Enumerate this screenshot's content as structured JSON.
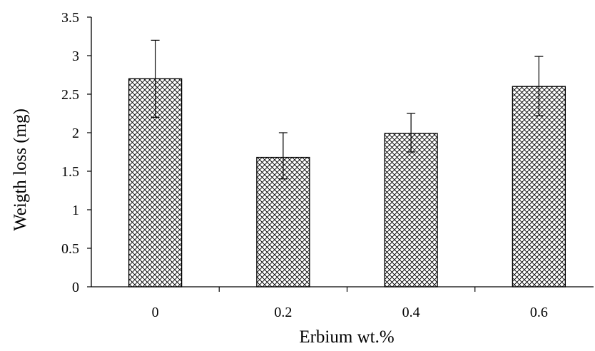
{
  "chart_data": {
    "type": "bar",
    "categories": [
      "0",
      "0.2",
      "0.4",
      "0.6"
    ],
    "values": [
      2.7,
      1.68,
      1.99,
      2.6
    ],
    "error_upper": [
      3.2,
      2.0,
      2.25,
      2.99
    ],
    "error_lower": [
      2.2,
      1.4,
      1.75,
      2.22
    ],
    "xlabel": "Erbium wt.%",
    "ylabel": "Weigth loss (mg)",
    "ylim": [
      0,
      3.5
    ],
    "yticks": [
      "0",
      "0.5",
      "1",
      "1.5",
      "2",
      "2.5",
      "3",
      "3.5"
    ],
    "grid": false,
    "legend": "none",
    "bar_fill": "crosshatch",
    "colors": {
      "bar_stroke": "#000000",
      "hatch": "#000000",
      "background": "#ffffff"
    }
  }
}
